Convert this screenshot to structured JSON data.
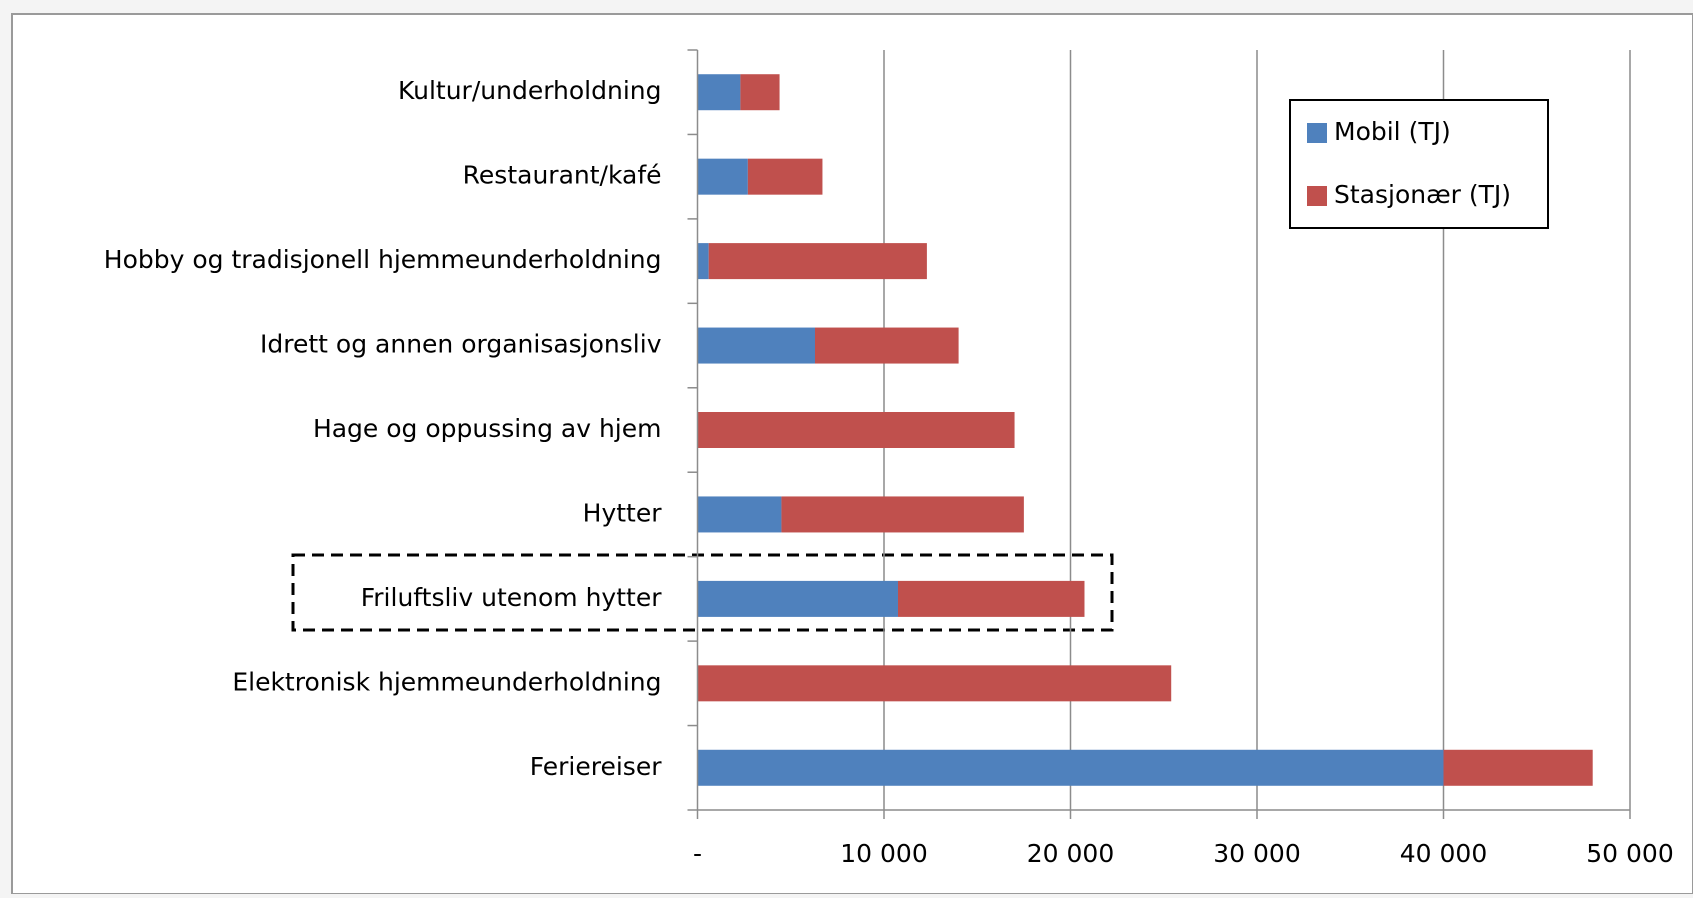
{
  "chart_data": {
    "type": "bar",
    "orientation": "horizontal",
    "stacked": true,
    "categories": [
      "Kultur/underholdning",
      "Restaurant/kafé",
      "Hobby og tradisjonell hjemmeunderholdning",
      "Idrett og annen organisasjonsliv",
      "Hage og oppussing av hjem",
      "Hytter",
      "Friluftsliv utenom hytter",
      "Elektronisk hjemmeunderholdning",
      "Feriereiser"
    ],
    "series": [
      {
        "name": "Mobil (TJ)",
        "color": "#4f81bd",
        "values": [
          2300,
          2700,
          600,
          6300,
          0,
          4500,
          10750,
          0,
          40000
        ]
      },
      {
        "name": "Stasjonær (TJ)",
        "color": "#c0504d",
        "values": [
          2100,
          4000,
          11700,
          7700,
          17000,
          13000,
          10000,
          25400,
          8000
        ]
      }
    ],
    "xlim": [
      0,
      50000
    ],
    "xticks": [
      {
        "value": 0,
        "label": "-"
      },
      {
        "value": 10000,
        "label": "10 000"
      },
      {
        "value": 20000,
        "label": "20 000"
      },
      {
        "value": 30000,
        "label": "30 000"
      },
      {
        "value": 40000,
        "label": "40 000"
      },
      {
        "value": 50000,
        "label": "50 000"
      }
    ],
    "grid": true,
    "legend": "top-right"
  }
}
